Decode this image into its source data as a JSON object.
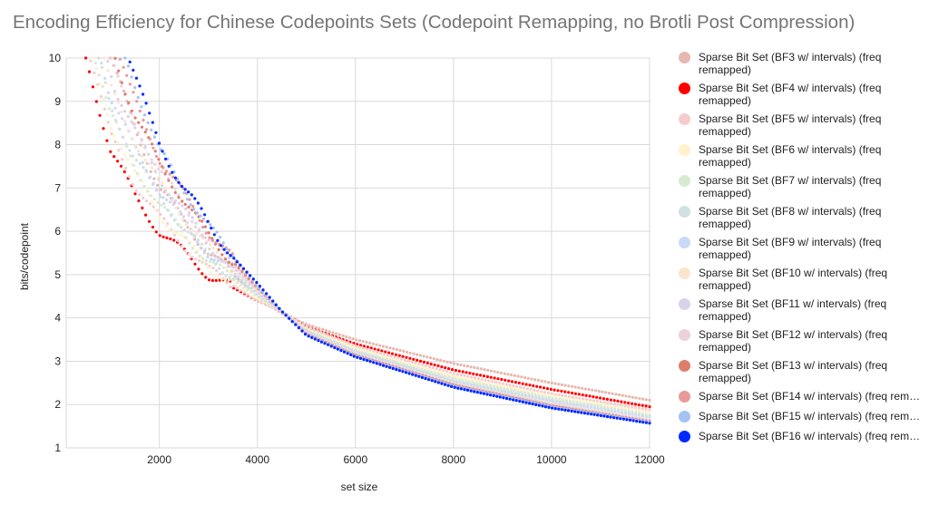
{
  "chart_data": {
    "type": "scatter",
    "title": "Encoding Efficiency for Chinese Codepoints Sets (Codepoint Remapping, no Brotli Post Compression)",
    "xlabel": "set size",
    "ylabel": "bits/codepoint",
    "xlim": [
      100,
      12000
    ],
    "ylim": [
      1,
      10
    ],
    "xticks": [
      2000,
      4000,
      6000,
      8000,
      10000,
      12000
    ],
    "yticks": [
      1,
      2,
      3,
      4,
      5,
      6,
      7,
      8,
      9,
      10
    ],
    "grid": true,
    "legend_position": "right",
    "series": [
      {
        "name": "Sparse Bit Set (BF3 w/ intervals) (freq remapped)",
        "color": "#e6b8af",
        "points": [
          [
            1000,
            10
          ],
          [
            1500,
            8.4
          ],
          [
            2000,
            7.0
          ],
          [
            3000,
            5.5
          ],
          [
            4000,
            4.5
          ],
          [
            4500,
            4.1
          ],
          [
            5000,
            3.85
          ],
          [
            6000,
            3.5
          ],
          [
            8000,
            2.95
          ],
          [
            10000,
            2.5
          ],
          [
            12000,
            2.1
          ]
        ]
      },
      {
        "name": "Sparse Bit Set (BF4 w/ intervals) (freq remapped)",
        "color": "#ff0000",
        "points": [
          [
            500,
            10
          ],
          [
            1000,
            7.9
          ],
          [
            1500,
            6.8
          ],
          [
            2000,
            6.0
          ],
          [
            3000,
            5.0
          ],
          [
            4000,
            4.4
          ],
          [
            4500,
            4.15
          ],
          [
            5000,
            3.8
          ],
          [
            6000,
            3.4
          ],
          [
            8000,
            2.8
          ],
          [
            10000,
            2.35
          ],
          [
            12000,
            1.95
          ]
        ]
      },
      {
        "name": "Sparse Bit Set (BF5 w/ intervals) (freq remapped)",
        "color": "#f4cccc",
        "points": [
          [
            600,
            10
          ],
          [
            1000,
            8.2
          ],
          [
            1500,
            7.1
          ],
          [
            2000,
            6.3
          ],
          [
            3000,
            5.1
          ],
          [
            4000,
            4.4
          ],
          [
            4500,
            4.15
          ],
          [
            5000,
            3.8
          ],
          [
            6000,
            3.35
          ],
          [
            8000,
            2.72
          ],
          [
            10000,
            2.25
          ],
          [
            12000,
            1.88
          ]
        ]
      },
      {
        "name": "Sparse Bit Set (BF6 w/ intervals) (freq remapped)",
        "color": "#fff2cc",
        "points": [
          [
            650,
            10
          ],
          [
            1000,
            8.5
          ],
          [
            1500,
            7.3
          ],
          [
            2000,
            6.4
          ],
          [
            3000,
            5.2
          ],
          [
            4000,
            4.45
          ],
          [
            4500,
            4.15
          ],
          [
            5000,
            3.75
          ],
          [
            6000,
            3.3
          ],
          [
            8000,
            2.65
          ],
          [
            10000,
            2.2
          ],
          [
            12000,
            1.82
          ]
        ]
      },
      {
        "name": "Sparse Bit Set (BF7 w/ intervals) (freq remapped)",
        "color": "#d9ead3",
        "points": [
          [
            700,
            10
          ],
          [
            1000,
            8.7
          ],
          [
            1500,
            7.5
          ],
          [
            2000,
            6.6
          ],
          [
            3000,
            5.3
          ],
          [
            4000,
            4.5
          ],
          [
            4500,
            4.15
          ],
          [
            5000,
            3.72
          ],
          [
            6000,
            3.25
          ],
          [
            8000,
            2.6
          ],
          [
            10000,
            2.15
          ],
          [
            12000,
            1.76
          ]
        ]
      },
      {
        "name": "Sparse Bit Set (BF8 w/ intervals) (freq remapped)",
        "color": "#d0e0e3",
        "points": [
          [
            760,
            10
          ],
          [
            1000,
            8.9
          ],
          [
            1500,
            7.7
          ],
          [
            2000,
            6.8
          ],
          [
            3000,
            5.4
          ],
          [
            4000,
            4.55
          ],
          [
            4500,
            4.15
          ],
          [
            5000,
            3.7
          ],
          [
            6000,
            3.22
          ],
          [
            8000,
            2.55
          ],
          [
            10000,
            2.1
          ],
          [
            12000,
            1.72
          ]
        ]
      },
      {
        "name": "Sparse Bit Set (BF9 w/ intervals) (freq remapped)",
        "color": "#c9daf8",
        "points": [
          [
            820,
            10
          ],
          [
            1000,
            9.1
          ],
          [
            1500,
            7.9
          ],
          [
            2000,
            6.95
          ],
          [
            3000,
            5.5
          ],
          [
            4000,
            4.6
          ],
          [
            4500,
            4.15
          ],
          [
            5000,
            3.68
          ],
          [
            6000,
            3.2
          ],
          [
            8000,
            2.52
          ],
          [
            10000,
            2.06
          ],
          [
            12000,
            1.69
          ]
        ]
      },
      {
        "name": "Sparse Bit Set (BF10 w/ intervals) (freq remapped)",
        "color": "#fce5cd",
        "points": [
          [
            880,
            10
          ],
          [
            1000,
            9.3
          ],
          [
            1500,
            8.1
          ],
          [
            2000,
            7.1
          ],
          [
            3000,
            5.6
          ],
          [
            4000,
            4.62
          ],
          [
            4500,
            4.15
          ],
          [
            5000,
            3.66
          ],
          [
            6000,
            3.18
          ],
          [
            8000,
            2.5
          ],
          [
            10000,
            2.03
          ],
          [
            12000,
            1.66
          ]
        ]
      },
      {
        "name": "Sparse Bit Set (BF11 w/ intervals) (freq remapped)",
        "color": "#d9d2e9",
        "points": [
          [
            950,
            10
          ],
          [
            1100,
            9.3
          ],
          [
            1500,
            8.3
          ],
          [
            2000,
            7.25
          ],
          [
            3000,
            5.7
          ],
          [
            4000,
            4.65
          ],
          [
            4500,
            4.15
          ],
          [
            5000,
            3.65
          ],
          [
            6000,
            3.16
          ],
          [
            8000,
            2.48
          ],
          [
            10000,
            2.0
          ],
          [
            12000,
            1.64
          ]
        ]
      },
      {
        "name": "Sparse Bit Set (BF12 w/ intervals) (freq remapped)",
        "color": "#ead1dc",
        "points": [
          [
            1020,
            10
          ],
          [
            1200,
            9.3
          ],
          [
            1500,
            8.5
          ],
          [
            2000,
            7.4
          ],
          [
            3000,
            5.8
          ],
          [
            4000,
            4.68
          ],
          [
            4500,
            4.15
          ],
          [
            5000,
            3.64
          ],
          [
            6000,
            3.15
          ],
          [
            8000,
            2.46
          ],
          [
            10000,
            1.98
          ],
          [
            12000,
            1.62
          ]
        ]
      },
      {
        "name": "Sparse Bit Set (BF13 w/ intervals) (freq remapped)",
        "color": "#dd7e6b",
        "points": [
          [
            1100,
            10
          ],
          [
            1300,
            9.3
          ],
          [
            1500,
            8.7
          ],
          [
            2000,
            7.55
          ],
          [
            3000,
            5.9
          ],
          [
            4000,
            4.7
          ],
          [
            4500,
            4.15
          ],
          [
            5000,
            3.63
          ],
          [
            6000,
            3.14
          ],
          [
            8000,
            2.45
          ],
          [
            10000,
            1.97
          ],
          [
            12000,
            1.61
          ]
        ]
      },
      {
        "name": "Sparse Bit Set (BF14 w/ intervals) (freq rem…",
        "color": "#ea9999",
        "points": [
          [
            1200,
            10
          ],
          [
            1400,
            9.3
          ],
          [
            1600,
            8.7
          ],
          [
            2000,
            7.7
          ],
          [
            3000,
            6.0
          ],
          [
            4000,
            4.72
          ],
          [
            4500,
            4.15
          ],
          [
            5000,
            3.62
          ],
          [
            6000,
            3.13
          ],
          [
            8000,
            2.44
          ],
          [
            10000,
            1.96
          ],
          [
            12000,
            1.6
          ]
        ]
      },
      {
        "name": "Sparse Bit Set (BF15 w/ intervals) (freq rem…",
        "color": "#a4c2f4",
        "points": [
          [
            1300,
            10
          ],
          [
            1500,
            9.4
          ],
          [
            1700,
            8.8
          ],
          [
            2000,
            7.85
          ],
          [
            3000,
            6.1
          ],
          [
            4000,
            4.75
          ],
          [
            4500,
            4.15
          ],
          [
            5000,
            3.61
          ],
          [
            6000,
            3.12
          ],
          [
            8000,
            2.43
          ],
          [
            10000,
            1.95
          ],
          [
            12000,
            1.59
          ]
        ]
      },
      {
        "name": "Sparse Bit Set (BF16 w/ intervals) (freq rem…",
        "color": "#0029ff",
        "points": [
          [
            1400,
            10
          ],
          [
            1600,
            9.3
          ],
          [
            1800,
            8.6
          ],
          [
            2000,
            8.0
          ],
          [
            2500,
            7.0
          ],
          [
            3000,
            6.2
          ],
          [
            3500,
            5.4
          ],
          [
            4000,
            4.8
          ],
          [
            4500,
            4.15
          ],
          [
            5000,
            3.6
          ],
          [
            6000,
            3.1
          ],
          [
            8000,
            2.4
          ],
          [
            10000,
            1.92
          ],
          [
            12000,
            1.57
          ]
        ]
      }
    ]
  }
}
